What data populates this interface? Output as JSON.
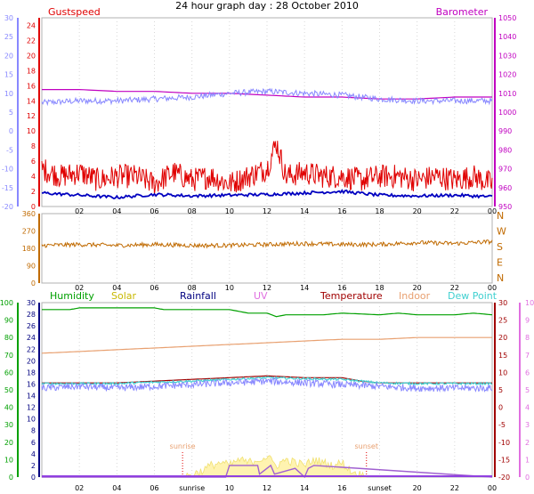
{
  "title": "24 hour graph day : 28 October 2010",
  "x_ticks": [
    "02",
    "04",
    "06",
    "08",
    "10",
    "12",
    "14",
    "16",
    "18",
    "20",
    "22",
    "00"
  ],
  "bottom_x_ticks": [
    "02",
    "04",
    "06",
    "sunrise",
    "10",
    "12",
    "14",
    "16",
    "sunset",
    "20",
    "22",
    "00"
  ],
  "colors": {
    "gust": "#e00000",
    "wind": "#0000c0",
    "baro": "#c000c0",
    "temp_left": "#8888ff",
    "direction": "#c06a00",
    "humidity": "#00a000",
    "solar": "#c8b800",
    "rainfall": "#000080",
    "uv": "#e070e0",
    "temperature": "#a00000",
    "indoor": "#e8a070",
    "dewpoint": "#40d0d0",
    "rose": "#b8a8ff",
    "sun": "#c8a030"
  },
  "chart_data": [
    {
      "type": "line",
      "labels": {
        "gust": "Gustspeed",
        "baro": "Barometer"
      },
      "left_axis_ticks": [
        "30",
        "25",
        "20",
        "15",
        "10",
        "5",
        "0",
        "-5",
        "-10",
        "-15",
        "-20"
      ],
      "gust_axis_ticks": [
        "24",
        "22",
        "20",
        "18",
        "16",
        "14",
        "12",
        "10",
        "8",
        "6",
        "4",
        "2",
        "0"
      ],
      "baro_axis_ticks": [
        "1050",
        "1040",
        "1030",
        "1020",
        "1010",
        "1000",
        "990",
        "980",
        "970",
        "960",
        "950"
      ],
      "ranges": {
        "left": [
          -20,
          30
        ],
        "gust": [
          0,
          25
        ],
        "baro": [
          950,
          1050
        ]
      },
      "series": [
        {
          "key": "baro",
          "axis": "baro",
          "hours": [
            0,
            2,
            4,
            6,
            8,
            10,
            12,
            14,
            16,
            18,
            20,
            22,
            24
          ],
          "values": [
            1012,
            1012,
            1011,
            1011,
            1010,
            1010,
            1009,
            1008,
            1008,
            1007,
            1007,
            1008,
            1008
          ]
        },
        {
          "key": "temp_left",
          "axis": "left",
          "hours": [
            0,
            2,
            4,
            6,
            8,
            10,
            12,
            14,
            16,
            18,
            20,
            22,
            24
          ],
          "values": [
            7.5,
            8,
            8,
            8.5,
            9,
            10,
            10.5,
            10,
            9.5,
            8.5,
            8,
            8,
            8
          ]
        },
        {
          "key": "gust",
          "axis": "gust",
          "hours": [
            0,
            1,
            2,
            3,
            4,
            5,
            6,
            7,
            8,
            9,
            10,
            11,
            12,
            12.5,
            13,
            14,
            15,
            16,
            17,
            18,
            19,
            20,
            21,
            22,
            23,
            24
          ],
          "values": [
            5,
            4,
            4.5,
            3.5,
            4,
            4,
            3,
            4.5,
            3.5,
            4,
            3,
            4,
            5,
            8.5,
            4,
            4.5,
            4,
            4,
            3.5,
            4,
            4,
            3.5,
            4,
            3.5,
            4,
            3
          ]
        },
        {
          "key": "wind",
          "axis": "gust",
          "hours": [
            0,
            2,
            4,
            6,
            8,
            10,
            12,
            14,
            16,
            18,
            20,
            22,
            24
          ],
          "values": [
            1.8,
            1.5,
            1.2,
            1.6,
            1.4,
            1.5,
            1.6,
            1.8,
            2.0,
            1.5,
            1.4,
            1.5,
            1.3
          ]
        }
      ]
    },
    {
      "type": "line",
      "left_axis_ticks": [
        "360",
        "270",
        "180",
        "90",
        "0"
      ],
      "right_axis_labels": [
        "N",
        "W",
        "S",
        "E",
        "N"
      ],
      "range": [
        0,
        360
      ],
      "series": [
        {
          "key": "direction",
          "hours": [
            0,
            2,
            4,
            6,
            8,
            10,
            12,
            14,
            16,
            18,
            20,
            22,
            24
          ],
          "values": [
            195,
            200,
            195,
            200,
            195,
            195,
            200,
            205,
            200,
            200,
            210,
            205,
            215
          ]
        }
      ]
    },
    {
      "type": "line",
      "labels": {
        "humidity": "Humidity",
        "solar": "Solar",
        "rainfall": "Rainfall",
        "uv": "UV",
        "temperature": "Temperature",
        "indoor": "Indoor",
        "dewpoint": "Dew Point"
      },
      "left_axis_ticks": [
        "100",
        "90",
        "80",
        "70",
        "60",
        "50",
        "40",
        "30",
        "20",
        "10",
        "0"
      ],
      "left2_axis_ticks": [
        "30",
        "28",
        "26",
        "24",
        "22",
        "20",
        "18",
        "16",
        "14",
        "12",
        "10",
        "8",
        "6",
        "4",
        "2",
        "0"
      ],
      "temp_axis_ticks": [
        "30",
        "25",
        "20",
        "15",
        "10",
        "5",
        "0",
        "-5",
        "-10",
        "-15",
        "-20"
      ],
      "uv_axis_ticks": [
        "10",
        "9",
        "8",
        "7",
        "6",
        "5",
        "4",
        "3",
        "2",
        "1",
        "0"
      ],
      "ranges": {
        "humidity": [
          0,
          100
        ],
        "temp": [
          -20,
          30
        ],
        "solar": [
          0,
          30
        ]
      },
      "annotations": {
        "sunrise": "sunrise",
        "sunset": "sunset",
        "sunrise_hour": 7.5,
        "sunset_hour": 17.3
      },
      "series": [
        {
          "key": "humidity",
          "axis": "humidity",
          "hours": [
            0,
            1.5,
            2,
            4,
            6,
            6.5,
            8,
            9,
            10,
            11,
            12,
            12.5,
            13,
            15,
            16,
            18,
            19,
            20,
            22,
            23,
            24
          ],
          "values": [
            96,
            96,
            97,
            97,
            97,
            96,
            96,
            96,
            96,
            94,
            94,
            92,
            93,
            93,
            94,
            93,
            94,
            93,
            93,
            94,
            93
          ]
        },
        {
          "key": "indoor",
          "axis": "temp",
          "hours": [
            0,
            2,
            4,
            6,
            8,
            10,
            12,
            14,
            16,
            18,
            20,
            22,
            24
          ],
          "values": [
            15.5,
            16,
            16.5,
            17,
            17.5,
            18,
            18.5,
            19,
            19.5,
            19.5,
            20,
            20,
            20
          ]
        },
        {
          "key": "temperature",
          "axis": "temp",
          "hours": [
            0,
            2,
            4,
            6,
            8,
            10,
            12,
            14,
            16,
            17,
            18,
            20,
            22,
            24
          ],
          "values": [
            7,
            7,
            7,
            7.5,
            8,
            8.5,
            9,
            8.5,
            8.5,
            7.5,
            7,
            7,
            7,
            7
          ]
        },
        {
          "key": "dewpoint",
          "axis": "temp",
          "hours": [
            0,
            2,
            4,
            6,
            8,
            10,
            12,
            14,
            16,
            18,
            20,
            22,
            24
          ],
          "values": [
            6.8,
            6.8,
            6.8,
            7.2,
            7.5,
            8,
            8.5,
            8.2,
            8,
            7,
            6.8,
            6.8,
            6.8
          ]
        },
        {
          "key": "temp_band",
          "axis": "temp",
          "hours": [
            0,
            2,
            4,
            6,
            8,
            10,
            12,
            14,
            16,
            18,
            20,
            22,
            24
          ],
          "values": [
            5.5,
            6,
            5.5,
            6,
            6.5,
            7,
            7.5,
            7,
            6.5,
            6,
            5.5,
            5.5,
            5.5
          ]
        },
        {
          "key": "solar",
          "axis": "solar",
          "hours": [
            7.5,
            8,
            8.5,
            9,
            9.5,
            10,
            10.5,
            11,
            11.5,
            12,
            12.5,
            13,
            13.5,
            14,
            14.5,
            15,
            15.5,
            16,
            16.5,
            17.3
          ],
          "values": [
            0,
            0.5,
            1,
            2,
            2.5,
            2,
            3,
            2.5,
            3,
            3.5,
            2,
            3,
            2.5,
            2,
            3,
            2.5,
            2,
            2.5,
            1,
            0
          ]
        },
        {
          "key": "uv",
          "axis": "solar",
          "hours": [
            0,
            9.8,
            10,
            11.5,
            11.6,
            12.2,
            12.4,
            13.5,
            14,
            14.2,
            14.5,
            24
          ],
          "values": [
            0,
            0,
            2,
            2,
            0.5,
            2,
            0.5,
            1.5,
            0,
            1.5,
            2,
            0
          ]
        },
        {
          "key": "rainfall",
          "axis": "solar",
          "hours": [
            0,
            24
          ],
          "values": [
            0,
            0
          ]
        }
      ]
    }
  ]
}
